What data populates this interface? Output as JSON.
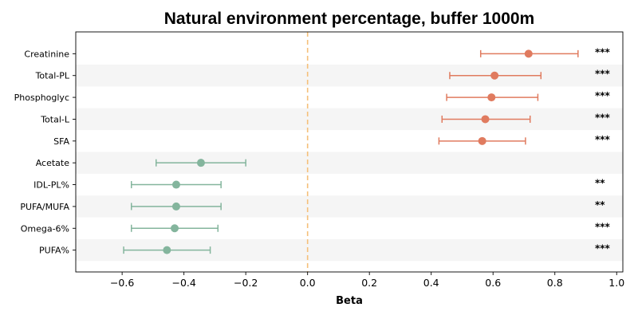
{
  "chart_data": {
    "type": "forest",
    "title": "Natural environment percentage, buffer 1000m",
    "xlabel": "Beta",
    "ylabel": "",
    "xlim": [
      -0.75,
      1.02
    ],
    "xticks": [
      -0.6,
      -0.4,
      -0.2,
      0.0,
      0.2,
      0.4,
      0.6,
      0.8,
      1.0
    ],
    "xtick_labels": [
      "−0.6",
      "−0.4",
      "−0.2",
      "0.0",
      "0.2",
      "0.4",
      "0.6",
      "0.8",
      "1.0"
    ],
    "reference_line": 0.0,
    "colors": {
      "positive": "#e07b5f",
      "negative": "#84b59d",
      "reference": "#f5c07a",
      "band": "#f5f5f5"
    },
    "rows": [
      {
        "label": "Creatinine",
        "beta": 0.715,
        "low": 0.56,
        "high": 0.875,
        "sig": "***"
      },
      {
        "label": "Total-PL",
        "beta": 0.605,
        "low": 0.46,
        "high": 0.755,
        "sig": "***"
      },
      {
        "label": "Phosphoglyc",
        "beta": 0.595,
        "low": 0.45,
        "high": 0.745,
        "sig": "***"
      },
      {
        "label": "Total-L",
        "beta": 0.575,
        "low": 0.435,
        "high": 0.72,
        "sig": "***"
      },
      {
        "label": "SFA",
        "beta": 0.565,
        "low": 0.425,
        "high": 0.705,
        "sig": "***"
      },
      {
        "label": "Acetate",
        "beta": -0.345,
        "low": -0.49,
        "high": -0.2,
        "sig": ""
      },
      {
        "label": "IDL-PL%",
        "beta": -0.425,
        "low": -0.57,
        "high": -0.28,
        "sig": "**"
      },
      {
        "label": "PUFA/MUFA",
        "beta": -0.425,
        "low": -0.57,
        "high": -0.28,
        "sig": "**"
      },
      {
        "label": "Omega-6%",
        "beta": -0.43,
        "low": -0.57,
        "high": -0.29,
        "sig": "***"
      },
      {
        "label": "PUFA%",
        "beta": -0.455,
        "low": -0.595,
        "high": -0.315,
        "sig": "***"
      }
    ]
  }
}
